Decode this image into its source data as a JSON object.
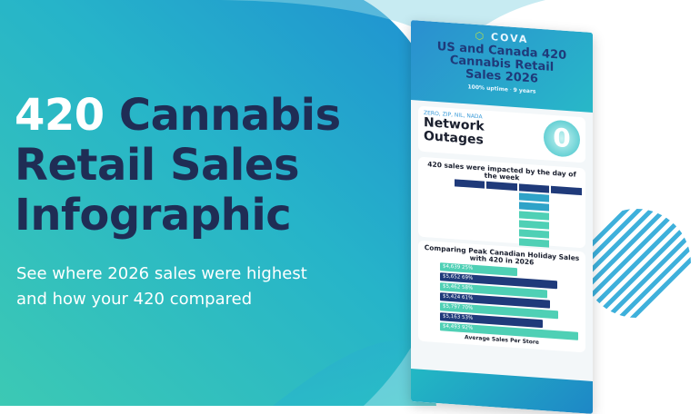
{
  "banner": {
    "title_highlight": "420",
    "title_rest_line1": "Cannabis",
    "title_line2": "Retail Sales",
    "title_line3": "Infographic",
    "subtitle_line1": "See where 2026 sales were highest",
    "subtitle_line2": "and how your 420 compared"
  },
  "colors": {
    "title_navy": "#1f2d55",
    "teal": "#2cc3c0",
    "blue": "#1e8fd0",
    "accent_green": "#b8e04a"
  },
  "infographic": {
    "logo": "COVA",
    "title_line1": "US and Canada 420",
    "title_line2": "Cannabis Retail",
    "title_line3": "Sales 2026",
    "tagline_bold1": "100% uptime",
    "tagline_bold2": "9 years",
    "outage_kicker": "ZERO, ZIP, NIL, NADA",
    "outage_line1": "Network",
    "outage_line2": "Outages",
    "outage_value": "0",
    "table_title": "420 sales were impacted by the day of the week",
    "bars_title": "Comparing Peak Canadian Holiday Sales with 420 in 2026",
    "bar_values": [
      "$4,639",
      "$5,652",
      "$5,462",
      "$5,424",
      "$5,797",
      "$5,163",
      "$4,493"
    ],
    "bar_percents": [
      "25%",
      "69%",
      "58%",
      "61%",
      "70%",
      "53%",
      "92%"
    ],
    "x_axis_label": "Average Sales Per Store"
  }
}
